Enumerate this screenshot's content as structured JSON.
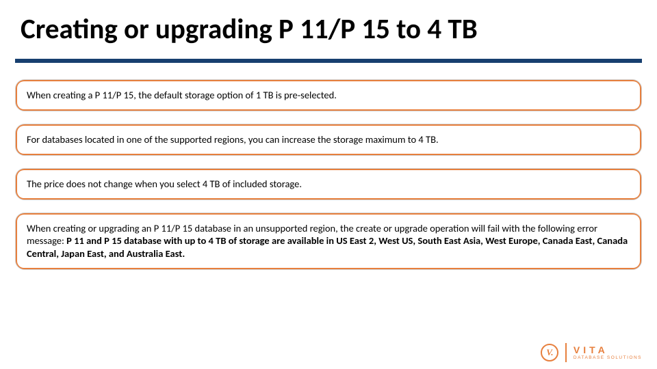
{
  "title": "Creating or upgrading P 11/P 15 to 4 TB",
  "divider_color": "#173f6f",
  "card_bg_color": "#e77f3d",
  "background_color": "#ffffff",
  "cards": [
    {
      "text": "When creating a P 11/P 15, the default storage option of 1 TB is pre-selected.",
      "has_bold": false
    },
    {
      "text": "For databases located in one of the supported regions, you can increase the storage maximum to 4 TB.",
      "has_bold": false
    },
    {
      "text": "The price does not change when you select 4 TB of included storage.",
      "has_bold": false
    },
    {
      "prefix": "When creating or upgrading an P 11/P 15 database in an unsupported region, the create or upgrade operation will fail with the following error message: ",
      "bold": "P 11 and P 15 database with up to 4 TB of storage are available in US East 2, West US, South East Asia, West Europe, Canada East, Canada Central, Japan East, and Australia East.",
      "has_bold": true
    }
  ],
  "logo": {
    "circle_letter": "V.",
    "brand": "VITA",
    "subtitle": "DATABASE SOLUTIONS",
    "color": "#e77f3d"
  }
}
